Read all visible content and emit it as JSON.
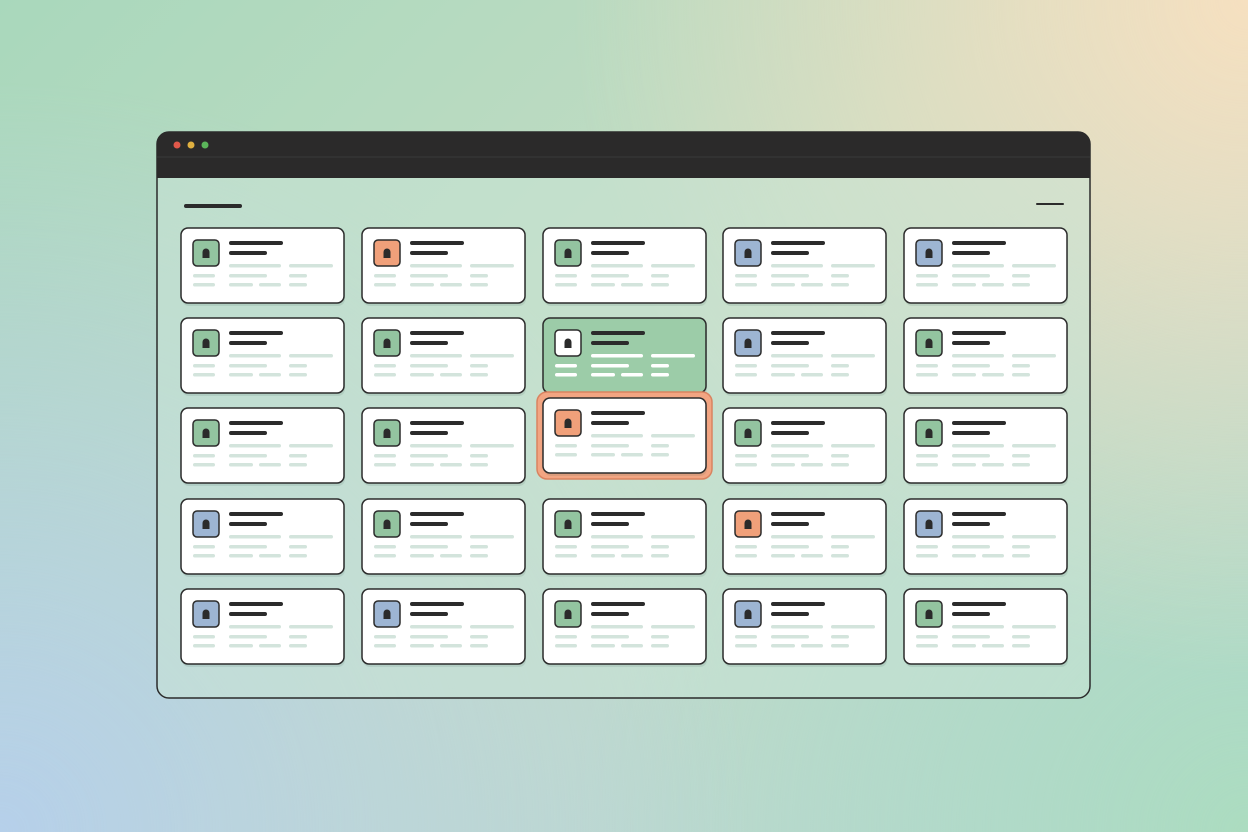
{
  "window": {
    "cards": [
      [
        {
          "icon": "#93c4a0"
        },
        {
          "icon": "#f0a07a"
        },
        {
          "icon": "#93c4a0"
        },
        {
          "icon": "#9db5d3"
        },
        {
          "icon": "#9db5d3"
        }
      ],
      [
        {
          "icon": "#93c4a0"
        },
        {
          "icon": "#93c4a0"
        },
        {
          "icon": "#ffffff",
          "fill": "#9ccca8"
        },
        {
          "icon": "#9db5d3"
        },
        {
          "icon": "#93c4a0"
        }
      ],
      [
        {
          "icon": "#93c4a0"
        },
        {
          "icon": "#93c4a0"
        },
        {
          "icon": "#f0a07a",
          "outline": "#f2a582"
        },
        {
          "icon": "#93c4a0"
        },
        {
          "icon": "#93c4a0"
        }
      ],
      [
        {
          "icon": "#9db5d3"
        },
        {
          "icon": "#93c4a0"
        },
        {
          "icon": "#93c4a0"
        },
        {
          "icon": "#f0a07a"
        },
        {
          "icon": "#9db5d3"
        }
      ],
      [
        {
          "icon": "#9db5d3"
        },
        {
          "icon": "#9db5d3"
        },
        {
          "icon": "#93c4a0"
        },
        {
          "icon": "#9db5d3"
        },
        {
          "icon": "#93c4a0"
        }
      ]
    ]
  }
}
